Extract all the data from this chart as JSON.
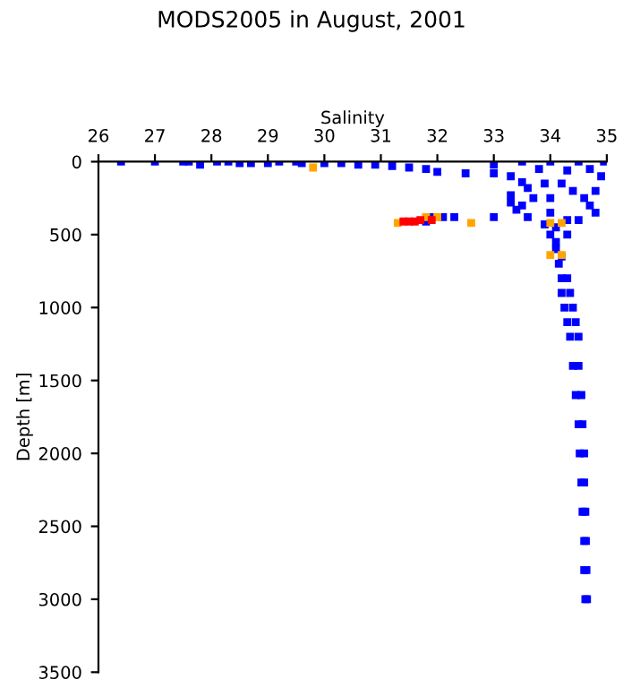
{
  "chart_data": {
    "type": "scatter",
    "title": "MODS2005 in August, 2001",
    "xlabel": "Salinity",
    "ylabel": "Depth [m]",
    "xlim": [
      26,
      35
    ],
    "xticks": [
      26,
      27,
      28,
      29,
      30,
      31,
      32,
      33,
      34,
      35
    ],
    "ylim": [
      3500,
      0
    ],
    "yticks": [
      0,
      500,
      1000,
      1500,
      2000,
      2500,
      3000,
      3500
    ],
    "marker": "square",
    "grid": false,
    "series": [
      {
        "color": "#0000ff",
        "x": [
          26.4,
          27.0,
          27.5,
          27.6,
          27.8,
          28.1,
          28.3,
          28.5,
          28.7,
          29.0,
          29.2,
          29.5,
          29.6,
          30.0,
          30.3,
          30.6,
          30.9,
          31.2,
          31.5,
          31.8,
          32.0,
          32.5,
          33.0,
          33.3,
          33.5,
          33.6,
          33.3,
          33.3,
          33.4,
          33.6,
          33.9,
          34.0,
          34.1,
          34.1,
          34.3,
          34.5,
          34.7,
          34.8,
          34.9,
          34.95,
          34.5,
          34.0,
          33.5,
          33.0,
          33.8,
          34.3,
          34.7,
          33.5,
          33.7,
          34.0,
          34.2,
          34.4,
          34.6,
          34.8,
          34.0,
          33.9,
          34.1,
          34.3,
          34.2,
          34.15,
          34.2,
          34.3,
          34.2,
          34.35,
          34.25,
          34.4,
          34.3,
          34.45,
          34.35,
          34.5,
          34.4,
          34.5,
          34.45,
          34.55,
          34.5,
          34.57,
          34.52,
          34.6,
          34.55,
          34.6,
          34.57,
          34.62,
          34.6,
          34.63,
          34.6,
          34.64,
          34.62,
          34.65,
          31.9,
          32.1,
          32.3,
          33.0,
          31.8
        ],
        "values": [
          0,
          0,
          0,
          0,
          20,
          0,
          0,
          10,
          10,
          10,
          0,
          0,
          10,
          10,
          10,
          20,
          20,
          30,
          40,
          50,
          70,
          80,
          80,
          100,
          140,
          180,
          230,
          280,
          330,
          380,
          430,
          500,
          550,
          600,
          500,
          400,
          300,
          200,
          100,
          0,
          0,
          0,
          0,
          20,
          50,
          60,
          50,
          300,
          250,
          250,
          150,
          200,
          250,
          350,
          350,
          150,
          450,
          400,
          650,
          700,
          800,
          800,
          900,
          900,
          1000,
          1000,
          1100,
          1100,
          1200,
          1200,
          1400,
          1400,
          1600,
          1600,
          1800,
          1800,
          2000,
          2000,
          2200,
          2200,
          2400,
          2400,
          2600,
          2600,
          2800,
          2800,
          3000,
          3000,
          380,
          380,
          380,
          380,
          410
        ]
      },
      {
        "color": "#ffa500",
        "x": [
          29.8,
          31.3,
          31.8,
          32.0,
          32.6,
          34.0,
          34.2,
          34.0,
          34.2
        ],
        "values": [
          40,
          420,
          380,
          380,
          420,
          420,
          420,
          640,
          640
        ]
      },
      {
        "color": "#ff0000",
        "x": [
          31.4,
          31.5,
          31.6,
          31.7,
          31.9
        ],
        "values": [
          410,
          410,
          410,
          400,
          400
        ]
      }
    ]
  }
}
